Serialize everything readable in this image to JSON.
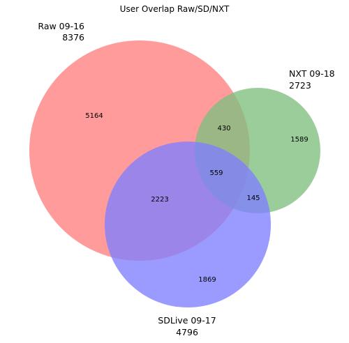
{
  "title": "User Overlap Raw/SD/NXT",
  "sets": {
    "raw": {
      "name": "Raw 09-16",
      "size": "8376",
      "color": "#ff7f7f"
    },
    "nxt": {
      "name": "NXT 09-18",
      "size": "2723",
      "color": "#7fbf7f"
    },
    "sd": {
      "name": "SDLive 09-17",
      "size": "4796",
      "color": "#7f7fff"
    }
  },
  "regions": {
    "raw_only": "5164",
    "nxt_only": "1589",
    "sd_only": "1869",
    "raw_nxt": "430",
    "raw_sd": "2223",
    "nxt_sd": "145",
    "all": "559"
  }
}
